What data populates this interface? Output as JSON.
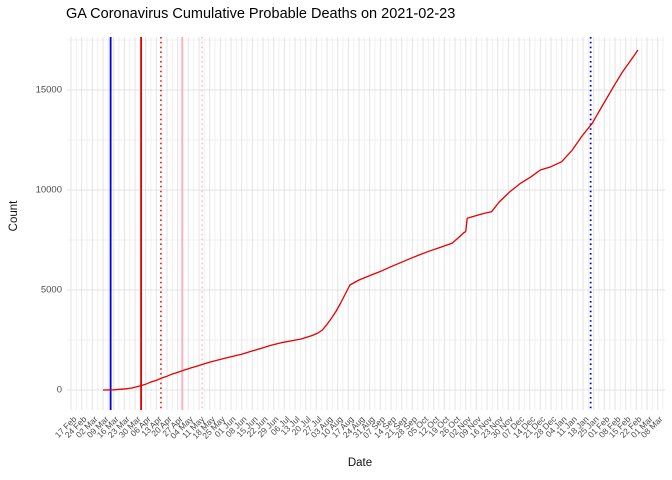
{
  "chart_data": {
    "type": "line",
    "title": "GA Coronavirus Cumulative Probable Deaths on 2021-02-23",
    "xlabel": "Date",
    "ylabel": "Count",
    "ylim": [
      0,
      17500
    ],
    "y_major_ticks": [
      0,
      5000,
      10000,
      15000
    ],
    "y_minor_ticks": [
      2500,
      7500,
      12500,
      17500
    ],
    "x_tick_start_date": "2020-02-17",
    "x_tick_interval_days": 7,
    "x_tick_labels": [
      "17 Feb",
      "24 Feb",
      "02 Mar",
      "09 Mar",
      "16 Mar",
      "23 Mar",
      "30 Mar",
      "06 Apr",
      "13 Apr",
      "20 Apr",
      "27 Apr",
      "04 May",
      "11 May",
      "18 May",
      "25 May",
      "01 Jun",
      "08 Jun",
      "15 Jun",
      "22 Jun",
      "29 Jun",
      "06 Jul",
      "13 Jul",
      "20 Jul",
      "27 Jul",
      "03 Aug",
      "10 Aug",
      "17 Aug",
      "24 Aug",
      "31 Aug",
      "07 Sep",
      "14 Sep",
      "21 Sep",
      "28 Sep",
      "05 Oct",
      "12 Oct",
      "19 Oct",
      "26 Oct",
      "02 Nov",
      "09 Nov",
      "16 Nov",
      "23 Nov",
      "30 Nov",
      "07 Dec",
      "14 Dec",
      "21 Dec",
      "28 Dec",
      "04 Jan",
      "11 Jan",
      "18 Jan",
      "25 Jan",
      "01 Feb",
      "08 Feb",
      "15 Feb",
      "22 Feb",
      "01 Mar",
      "08 Mar"
    ],
    "grid": true,
    "legend": "none",
    "colors": {
      "background": "#ffffff",
      "grid_major": "#e3e3e3",
      "grid_minor": "#f0f0f0",
      "axis_text": "#4d4d4d",
      "line": "#e60000",
      "vline_blue": "#0000e0",
      "vline_red": "#e60000",
      "vline_pink": "#ffb0bd"
    },
    "series": [
      {
        "name": "cumulative-probable-deaths",
        "color": "#e60000",
        "points": [
          [
            "2020-03-09",
            0
          ],
          [
            "2020-03-16",
            10
          ],
          [
            "2020-03-20",
            35
          ],
          [
            "2020-03-24",
            60
          ],
          [
            "2020-03-28",
            100
          ],
          [
            "2020-04-02",
            200
          ],
          [
            "2020-04-06",
            290
          ],
          [
            "2020-04-09",
            385
          ],
          [
            "2020-04-13",
            480
          ],
          [
            "2020-04-16",
            585
          ],
          [
            "2020-04-20",
            690
          ],
          [
            "2020-04-23",
            785
          ],
          [
            "2020-04-27",
            880
          ],
          [
            "2020-04-30",
            965
          ],
          [
            "2020-05-06",
            1115
          ],
          [
            "2020-05-10",
            1200
          ],
          [
            "2020-05-14",
            1300
          ],
          [
            "2020-05-20",
            1430
          ],
          [
            "2020-05-26",
            1550
          ],
          [
            "2020-06-01",
            1660
          ],
          [
            "2020-06-08",
            1785
          ],
          [
            "2020-06-14",
            1930
          ],
          [
            "2020-06-21",
            2085
          ],
          [
            "2020-06-27",
            2230
          ],
          [
            "2020-07-04",
            2365
          ],
          [
            "2020-07-10",
            2450
          ],
          [
            "2020-07-17",
            2550
          ],
          [
            "2020-07-24",
            2720
          ],
          [
            "2020-07-28",
            2850
          ],
          [
            "2020-07-31",
            3000
          ],
          [
            "2020-08-03",
            3280
          ],
          [
            "2020-08-06",
            3600
          ],
          [
            "2020-08-09",
            3950
          ],
          [
            "2020-08-12",
            4350
          ],
          [
            "2020-08-15",
            4800
          ],
          [
            "2020-08-18",
            5250
          ],
          [
            "2020-08-24",
            5500
          ],
          [
            "2020-09-01",
            5750
          ],
          [
            "2020-09-08",
            5960
          ],
          [
            "2020-09-14",
            6165
          ],
          [
            "2020-09-20",
            6360
          ],
          [
            "2020-09-27",
            6585
          ],
          [
            "2020-10-03",
            6770
          ],
          [
            "2020-10-10",
            6965
          ],
          [
            "2020-10-17",
            7150
          ],
          [
            "2020-10-24",
            7335
          ],
          [
            "2020-10-28",
            7600
          ],
          [
            "2020-11-01",
            7880
          ],
          [
            "2020-11-02",
            7915
          ],
          [
            "2020-11-03",
            8585
          ],
          [
            "2020-11-08",
            8700
          ],
          [
            "2020-11-14",
            8830
          ],
          [
            "2020-11-19",
            8915
          ],
          [
            "2020-11-24",
            9400
          ],
          [
            "2020-12-01",
            9915
          ],
          [
            "2020-12-08",
            10335
          ],
          [
            "2020-12-15",
            10665
          ],
          [
            "2020-12-21",
            11000
          ],
          [
            "2020-12-28",
            11165
          ],
          [
            "2021-01-04",
            11415
          ],
          [
            "2021-01-11",
            12000
          ],
          [
            "2021-01-17",
            12665
          ],
          [
            "2021-01-24",
            13335
          ],
          [
            "2021-01-31",
            14250
          ],
          [
            "2021-02-07",
            15165
          ],
          [
            "2021-02-13",
            15915
          ],
          [
            "2021-02-20",
            16665
          ],
          [
            "2021-02-23",
            17000
          ]
        ]
      }
    ],
    "vlines": [
      {
        "name": "event-blue-solid",
        "date": "2020-03-14",
        "color": "#0000e0",
        "style": "solid",
        "width": 1.8
      },
      {
        "name": "event-red-solid",
        "date": "2020-04-03",
        "color": "#e60000",
        "style": "solid",
        "width": 1.8
      },
      {
        "name": "event-red-dotted",
        "date": "2020-04-16",
        "color": "#e60000",
        "style": "dotted",
        "width": 1.4
      },
      {
        "name": "event-pink-solid",
        "date": "2020-04-30",
        "color": "#ffb0bd",
        "style": "solid",
        "width": 1.9
      },
      {
        "name": "event-pink-dotted",
        "date": "2020-05-13",
        "color": "#ffb0bd",
        "style": "dotted",
        "width": 1.4
      },
      {
        "name": "event-blue-dotted",
        "date": "2021-01-23",
        "color": "#0000e0",
        "style": "dotted",
        "width": 1.8
      }
    ]
  }
}
